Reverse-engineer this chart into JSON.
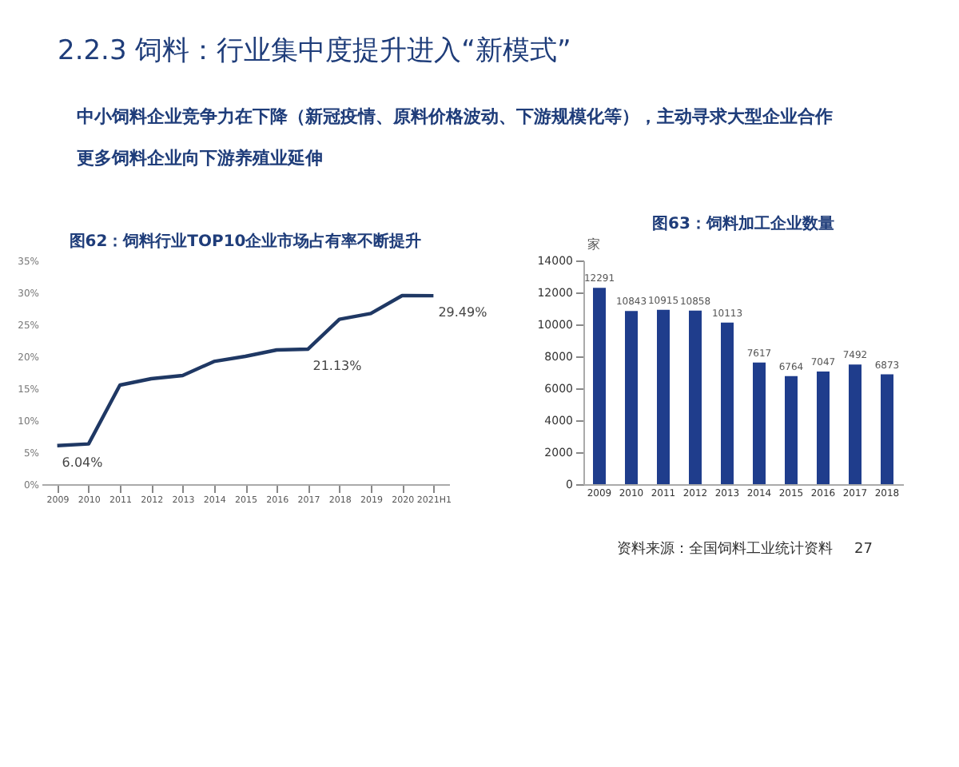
{
  "chart_data": [
    {
      "type": "line",
      "title": "图62：饲料行业TOP10企业市场占有率不断提升",
      "annotations": [
        "2.2.3 饲料：行业集中度提升进入“新模式”",
        "中小饲料企业竞争力在下降（新冠疫情、原料价格波动、下游规模化等），主动寻求大型企业合作",
        "更多饲料企业向下游养殖业延伸"
      ],
      "categories": [
        "2009",
        "2010",
        "2011",
        "2012",
        "2013",
        "2014",
        "2015",
        "2016",
        "2017",
        "2018",
        "2019",
        "2020",
        "2021H1"
      ],
      "series": [
        {
          "color": "#1f3864",
          "values": [
            6.04,
            6.3,
            15.5,
            16.5,
            17.0,
            19.2,
            20.0,
            21.0,
            21.13,
            25.8,
            26.7,
            29.5,
            29.49
          ],
          "value_labels": [
            "6.04%",
            null,
            null,
            null,
            null,
            null,
            null,
            null,
            "21.13%",
            null,
            null,
            null,
            "29.49%"
          ]
        }
      ],
      "ylim": [
        0,
        35
      ],
      "yticks": [
        {
          "value": 0,
          "label": "0%"
        },
        {
          "value": 5,
          "label": "5%"
        },
        {
          "value": 10,
          "label": "10%"
        },
        {
          "value": 15,
          "label": "15%"
        },
        {
          "value": 20,
          "label": "20%"
        },
        {
          "value": 25,
          "label": "25%"
        },
        {
          "value": 30,
          "label": "30%"
        },
        {
          "value": 35,
          "label": "35%"
        }
      ],
      "grid": false,
      "marker": "none",
      "line_style": "solid"
    },
    {
      "type": "bar",
      "title": "图63：饲料加工企业数量",
      "ylabel": "家",
      "categories": [
        "2009",
        "2010",
        "2011",
        "2012",
        "2013",
        "2014",
        "2015",
        "2016",
        "2017",
        "2018"
      ],
      "values": [
        12291,
        10843,
        10915,
        10858,
        10113,
        7617,
        6764,
        7047,
        7492,
        6873
      ],
      "color": "#1f3d8c",
      "data_labels": true,
      "ylim": [
        0,
        14000
      ],
      "yticks": [
        0,
        2000,
        4000,
        6000,
        8000,
        10000,
        12000,
        14000
      ],
      "grid": false,
      "annotations": [
        "资料来源：全国饲料工业统计资料",
        "27"
      ]
    }
  ]
}
